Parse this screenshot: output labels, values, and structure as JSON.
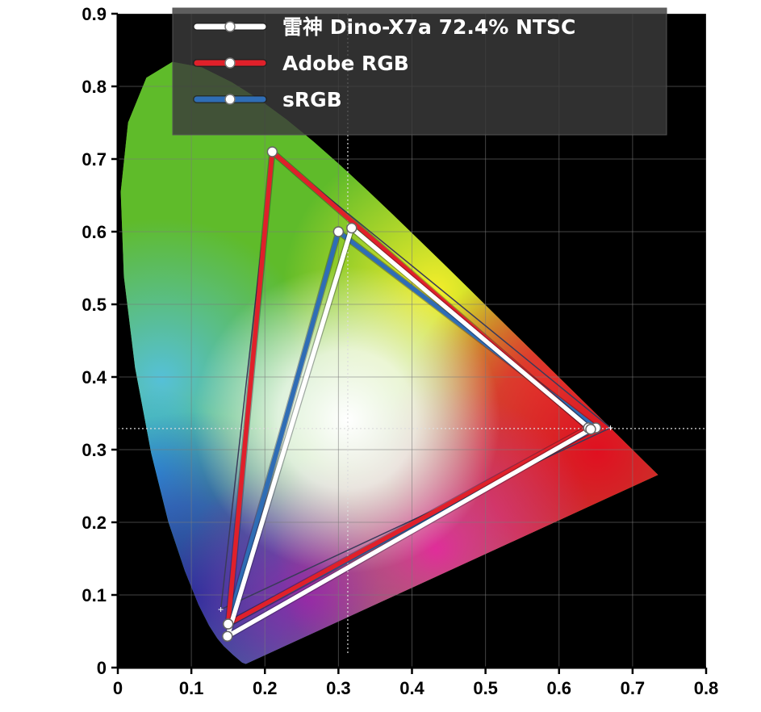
{
  "chart_data": {
    "type": "scatter",
    "xlim": [
      0,
      0.8
    ],
    "ylim": [
      0,
      0.9
    ],
    "x_ticks": [
      "0",
      "0.1",
      "0.2",
      "0.3",
      "0.4",
      "0.5",
      "0.6",
      "0.7",
      "0.8"
    ],
    "y_ticks": [
      "0",
      "0.1",
      "0.2",
      "0.3",
      "0.4",
      "0.5",
      "0.6",
      "0.7",
      "0.8",
      "0.9"
    ],
    "grid": true,
    "legend_position": "top",
    "white_point": {
      "x": 0.3127,
      "y": 0.329
    },
    "series": [
      {
        "name": "雷神 Dino-X7a 72.4% NTSC",
        "color": "#ffffff",
        "points": [
          {
            "x": 0.318,
            "y": 0.605
          },
          {
            "x": 0.643,
            "y": 0.328
          },
          {
            "x": 0.149,
            "y": 0.043
          }
        ]
      },
      {
        "name": "Adobe RGB",
        "color": "#e0202a",
        "points": [
          {
            "x": 0.21,
            "y": 0.71
          },
          {
            "x": 0.64,
            "y": 0.33
          },
          {
            "x": 0.15,
            "y": 0.06
          }
        ]
      },
      {
        "name": "sRGB",
        "color": "#2f6db5",
        "points": [
          {
            "x": 0.3,
            "y": 0.6
          },
          {
            "x": 0.65,
            "y": 0.33
          },
          {
            "x": 0.15,
            "y": 0.06
          }
        ]
      }
    ],
    "reference_triangle": {
      "color": "#3a3a5a",
      "points": [
        {
          "x": 0.21,
          "y": 0.71
        },
        {
          "x": 0.67,
          "y": 0.33
        },
        {
          "x": 0.14,
          "y": 0.08
        }
      ]
    }
  }
}
